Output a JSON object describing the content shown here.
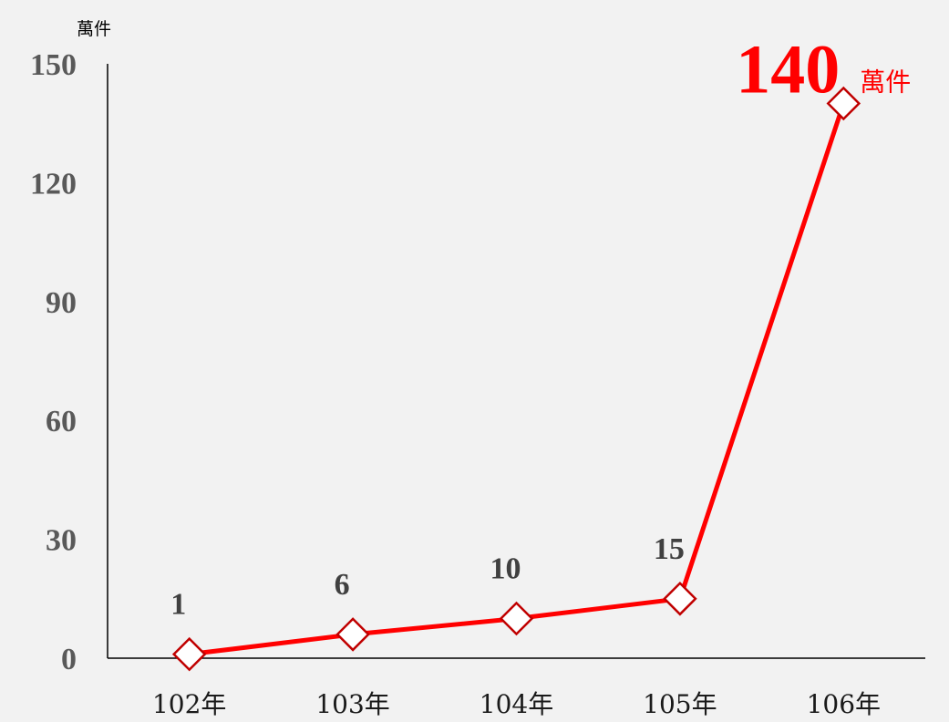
{
  "chart_data": {
    "type": "line",
    "y_unit": "萬件",
    "categories": [
      "102年",
      "103年",
      "104年",
      "105年",
      "106年"
    ],
    "values": [
      1,
      6,
      10,
      15,
      140
    ],
    "data_labels": [
      "1",
      "6",
      "10",
      "15",
      "140"
    ],
    "highlight_unit": "萬件",
    "ylim": [
      0,
      150
    ],
    "yticks": [
      0,
      30,
      60,
      90,
      120,
      150
    ],
    "ytick_labels": [
      "0",
      "30",
      "60",
      "90",
      "120",
      "150"
    ],
    "grid": false,
    "legend": "none",
    "colors": {
      "line": "#ff0000",
      "marker_stroke": "#c00000",
      "marker_fill": "#ffffff",
      "highlight": "#ff0000"
    }
  }
}
